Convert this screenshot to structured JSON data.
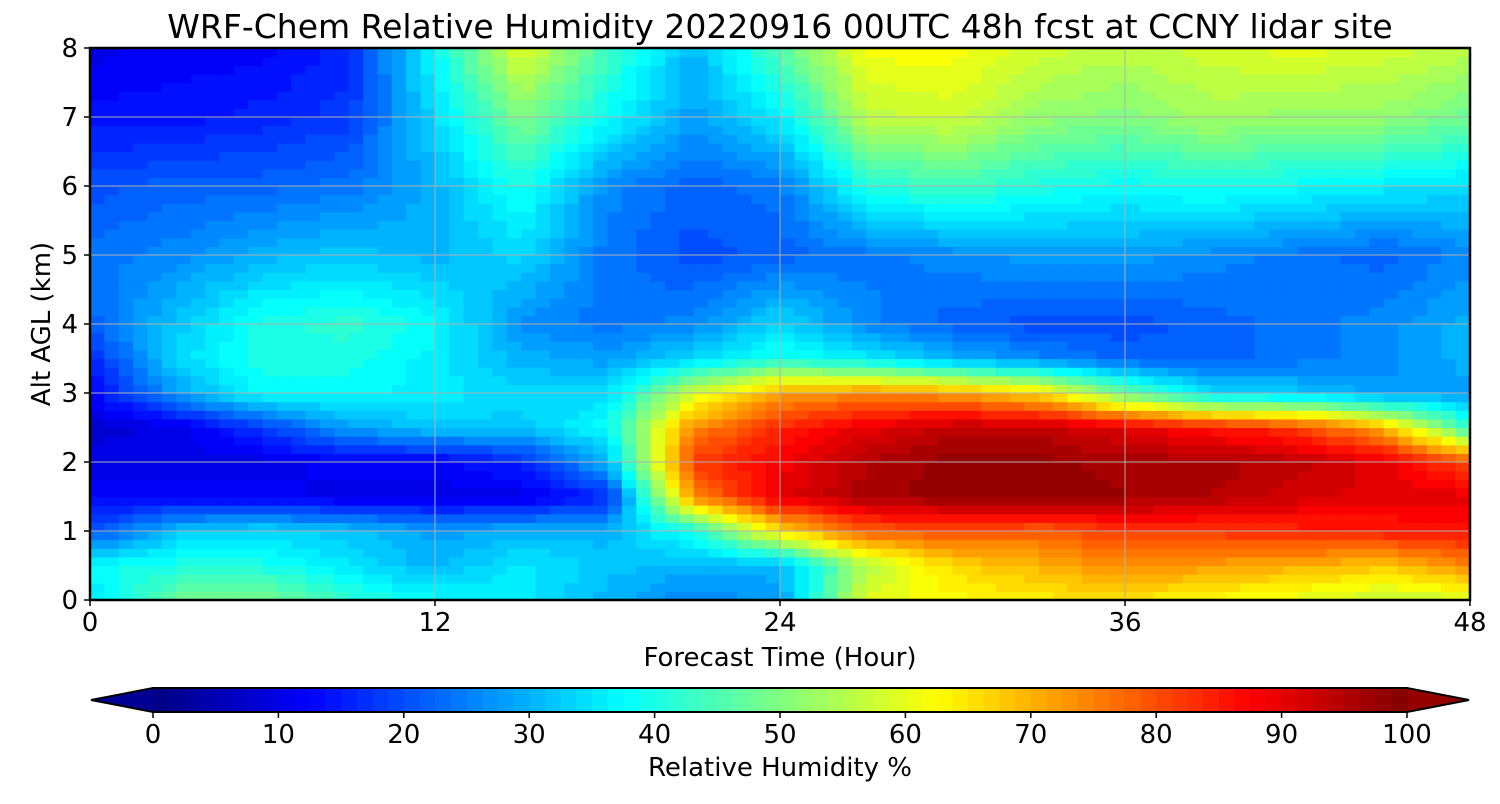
{
  "chart_data": {
    "type": "heatmap",
    "title": "WRF-Chem Relative Humidity 20220916 00UTC 48h fcst at CCNY lidar site",
    "xlabel": "Forecast Time (Hour)",
    "ylabel": "Alt AGL (km)",
    "xlim": [
      0,
      48
    ],
    "ylim": [
      0,
      8
    ],
    "x_ticks": [
      0,
      12,
      24,
      36,
      48
    ],
    "y_ticks": [
      0,
      1,
      2,
      3,
      4,
      5,
      6,
      7,
      8
    ],
    "grid": true,
    "colormap": "jet",
    "colorbar": {
      "label": "Relative Humidity %",
      "range": [
        0,
        100
      ],
      "ticks": [
        0,
        10,
        20,
        30,
        40,
        50,
        60,
        70,
        80,
        90,
        100
      ],
      "extend": "both",
      "placement": "bottom"
    },
    "x": [
      0,
      3,
      6,
      9,
      12,
      15,
      18,
      21,
      24,
      27,
      30,
      33,
      36,
      39,
      42,
      45,
      48
    ],
    "y": [
      0,
      0.5,
      1,
      1.5,
      2,
      2.5,
      3,
      3.5,
      4,
      5,
      6,
      7,
      8
    ],
    "z": [
      [
        35,
        48,
        50,
        42,
        38,
        36,
        30,
        25,
        28,
        60,
        62,
        64,
        65,
        62,
        60,
        56,
        58
      ],
      [
        38,
        40,
        40,
        35,
        30,
        36,
        32,
        30,
        30,
        55,
        66,
        70,
        74,
        72,
        70,
        68,
        74
      ],
      [
        20,
        32,
        34,
        32,
        28,
        30,
        30,
        40,
        65,
        78,
        80,
        78,
        82,
        82,
        84,
        85,
        86
      ],
      [
        12,
        12,
        12,
        10,
        10,
        10,
        16,
        74,
        90,
        96,
        98,
        99,
        97,
        95,
        92,
        90,
        90
      ],
      [
        10,
        10,
        10,
        12,
        12,
        16,
        30,
        82,
        88,
        95,
        98,
        98,
        96,
        96,
        94,
        90,
        80
      ],
      [
        8,
        10,
        18,
        28,
        32,
        32,
        38,
        74,
        84,
        90,
        94,
        94,
        90,
        86,
        82,
        70,
        42
      ],
      [
        12,
        28,
        38,
        38,
        36,
        34,
        34,
        58,
        72,
        74,
        72,
        66,
        48,
        34,
        32,
        28,
        28
      ],
      [
        16,
        34,
        40,
        40,
        36,
        30,
        28,
        34,
        40,
        36,
        30,
        26,
        22,
        22,
        24,
        26,
        30
      ],
      [
        22,
        32,
        40,
        42,
        38,
        26,
        24,
        26,
        34,
        26,
        22,
        20,
        20,
        22,
        24,
        26,
        30
      ],
      [
        24,
        26,
        30,
        32,
        30,
        34,
        24,
        20,
        22,
        24,
        26,
        28,
        28,
        26,
        24,
        22,
        26
      ],
      [
        20,
        22,
        22,
        24,
        30,
        40,
        26,
        22,
        24,
        40,
        44,
        40,
        38,
        40,
        38,
        36,
        34
      ],
      [
        14,
        14,
        16,
        18,
        34,
        50,
        38,
        28,
        36,
        56,
        58,
        52,
        50,
        54,
        52,
        52,
        48
      ],
      [
        10,
        12,
        12,
        16,
        38,
        60,
        44,
        30,
        46,
        62,
        62,
        58,
        56,
        58,
        60,
        58,
        56
      ]
    ]
  }
}
